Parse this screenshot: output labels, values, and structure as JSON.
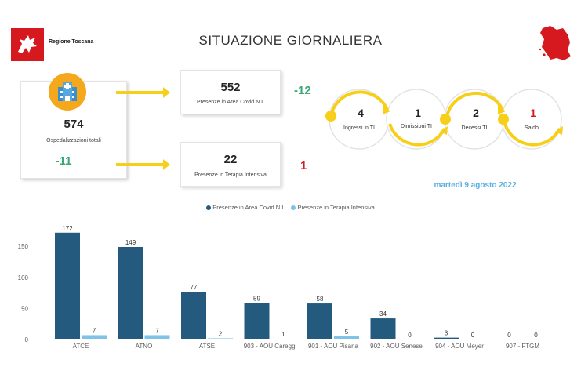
{
  "header": {
    "logo_text": "Regione Toscana",
    "title": "SITUAZIONE GIORNALIERA"
  },
  "totals": {
    "value": "574",
    "label": "Ospedalizzazioni totali",
    "delta": "-11"
  },
  "covid_area": {
    "value": "552",
    "label": "Presenze in Area Covid N.I.",
    "delta": "-12"
  },
  "intensive": {
    "value": "22",
    "label": "Presenze in Terapia Intensiva",
    "delta": "1"
  },
  "flow": {
    "items": [
      {
        "value": "4",
        "label": "Ingressi in TI"
      },
      {
        "value": "1",
        "label": "Dimissioni TI"
      },
      {
        "value": "2",
        "label": "Decessi TI"
      },
      {
        "value": "1",
        "label": "Saldo"
      }
    ]
  },
  "date": "martedì 9 agosto 2022",
  "colors": {
    "dark_series": "#235a7e",
    "light_series": "#7ec2ea",
    "accent_yellow": "#f8cf18",
    "green": "#3aa874",
    "red": "#d6181f"
  },
  "chart_data": {
    "type": "bar",
    "categories": [
      "ATCE",
      "ATNO",
      "ATSE",
      "903 - AOU Careggi",
      "901 - AOU Pisana",
      "902 - AOU Senese",
      "904 - AOU Meyer",
      "907 - FTGM"
    ],
    "series": [
      {
        "name": "Presenze in Area Covid N.I.",
        "values": [
          172,
          149,
          77,
          59,
          58,
          34,
          3,
          0
        ]
      },
      {
        "name": "Presenze in Terapia Intensiva",
        "values": [
          7,
          7,
          2,
          1,
          5,
          0,
          0,
          0
        ]
      }
    ],
    "yticks": [
      0,
      50,
      100,
      150
    ],
    "ylim": [
      0,
      180
    ],
    "legend_position": "top-center",
    "grid": false
  }
}
